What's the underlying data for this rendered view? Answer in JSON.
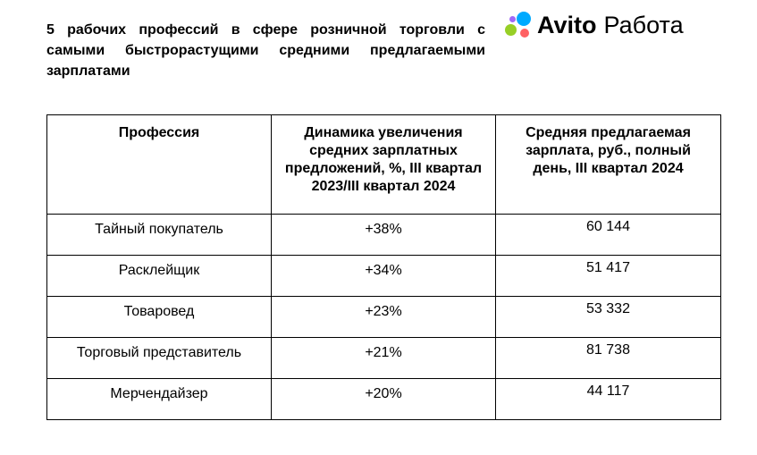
{
  "title": "5 рабочих профессий в сфере розничной торговли с самыми быстрорастущими средними предлагаемыми зарплатами",
  "logo": {
    "brand": "Avito",
    "sub": "Работа",
    "icon": "avito-dots-icon",
    "colors": [
      "#97cf26",
      "#ff6163",
      "#0af",
      "#a169f7"
    ]
  },
  "table": {
    "headers": [
      "Профессия",
      "Динамика увеличения средних зарплатных предложений, %, III квартал 2023/III квартал 2024",
      "Средняя предлагаемая зарплата, руб., полный день, III квартал 2024"
    ],
    "rows": [
      [
        "Тайный покупатель",
        "+38%",
        "60 144"
      ],
      [
        "Расклейщик",
        "+34%",
        "51 417"
      ],
      [
        "Товаровед",
        "+23%",
        "53 332"
      ],
      [
        "Торговый представитель",
        "+21%",
        "81 738"
      ],
      [
        "Мерчендайзер",
        "+20%",
        "44 117"
      ]
    ]
  }
}
